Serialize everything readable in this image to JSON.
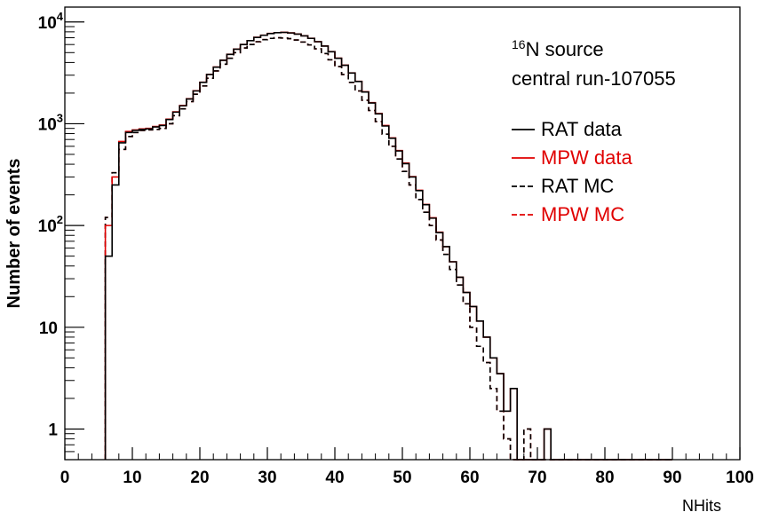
{
  "chart_data": {
    "type": "line",
    "xlabel": "NHits",
    "ylabel": "Number of events",
    "xlim": [
      0,
      100
    ],
    "ylim": [
      0.5,
      14000
    ],
    "yscale": "log",
    "grid": false,
    "x_ticks": [
      "0",
      "10",
      "20",
      "30",
      "40",
      "50",
      "60",
      "70",
      "80",
      "90",
      "100"
    ],
    "y_ticks": [
      {
        "value": 1,
        "label": "1"
      },
      {
        "value": 10,
        "label": "10"
      },
      {
        "value": 100,
        "label": "10",
        "sup": "2"
      },
      {
        "value": 1000,
        "label": "10",
        "sup": "3"
      },
      {
        "value": 10000,
        "label": "10",
        "sup": "4"
      }
    ],
    "annotation": {
      "line1_sup": "16",
      "line1": "N source",
      "line2": "central run-107055"
    },
    "legend_placement": "right",
    "bin_edges_start": 6,
    "bin_width": 1,
    "series": [
      {
        "name": "RAT data",
        "color": "#000000",
        "dash": "solid",
        "values": [
          50,
          250,
          650,
          820,
          860,
          880,
          890,
          930,
          960,
          1100,
          1300,
          1500,
          1750,
          2100,
          2550,
          3050,
          3600,
          4200,
          4800,
          5400,
          6000,
          6550,
          7050,
          7400,
          7700,
          7850,
          7900,
          7800,
          7600,
          7300,
          6900,
          6400,
          5800,
          5100,
          4400,
          3750,
          3150,
          2600,
          2050,
          1600,
          1250,
          950,
          720,
          540,
          405,
          300,
          220,
          160,
          118,
          85,
          62,
          44,
          31,
          22,
          16,
          11.5,
          8,
          5,
          3.5,
          1.5,
          2.5,
          0,
          0.5,
          0,
          0,
          1,
          0,
          0,
          0,
          0,
          0,
          0,
          0,
          0,
          0,
          0,
          0,
          0,
          0,
          0,
          0,
          0,
          0,
          0
        ]
      },
      {
        "name": "MPW data",
        "color": "#e00000",
        "dash": "solid",
        "values": [
          100,
          300,
          670,
          840,
          870,
          890,
          900,
          940,
          970,
          1110,
          1310,
          1510,
          1760,
          2110,
          2560,
          3060,
          3610,
          4210,
          4810,
          5410,
          6010,
          6560,
          7060,
          7410,
          7710,
          7860,
          7910,
          7810,
          7610,
          7310,
          6910,
          6410,
          5810,
          5110,
          4410,
          3760,
          3160,
          2610,
          2060,
          1610,
          1260,
          960,
          725,
          545,
          410,
          302,
          222,
          161,
          119,
          86,
          62,
          44,
          31,
          22,
          16,
          11.5,
          8,
          5,
          3.5,
          1.5,
          2.5,
          0,
          0.5,
          0,
          0,
          1,
          0,
          0,
          0,
          0,
          0,
          0,
          0,
          0,
          0,
          0,
          0,
          0,
          0,
          0,
          0,
          0,
          0,
          0
        ]
      },
      {
        "name": "RAT MC",
        "color": "#000000",
        "dash": "dashed",
        "values": [
          120,
          330,
          560,
          750,
          820,
          860,
          870,
          880,
          900,
          1000,
          1200,
          1400,
          1650,
          1950,
          2350,
          2800,
          3300,
          3850,
          4400,
          5000,
          5550,
          6000,
          6400,
          6700,
          6900,
          7000,
          6950,
          6850,
          6650,
          6350,
          5950,
          5450,
          4900,
          4250,
          3650,
          3050,
          2550,
          2100,
          1700,
          1350,
          1050,
          790,
          600,
          450,
          340,
          250,
          180,
          135,
          100,
          72,
          52,
          37,
          26,
          17,
          10,
          6.5,
          4.5,
          2.5,
          1.5,
          0.8,
          0.5,
          0,
          1,
          0,
          0,
          0,
          0,
          0,
          0,
          0,
          0,
          0,
          0,
          0,
          0,
          0,
          0,
          0,
          0,
          0,
          0,
          0,
          0,
          0
        ]
      },
      {
        "name": "MPW MC",
        "color": "#e00000",
        "dash": "dashed",
        "values": [
          120,
          330,
          560,
          750,
          820,
          860,
          870,
          880,
          900,
          1000,
          1200,
          1400,
          1650,
          1950,
          2350,
          2800,
          3300,
          3850,
          4400,
          5000,
          5550,
          6000,
          6400,
          6700,
          6900,
          7000,
          6950,
          6850,
          6650,
          6350,
          5950,
          5450,
          4900,
          4250,
          3650,
          3050,
          2550,
          2100,
          1700,
          1350,
          1050,
          790,
          600,
          450,
          340,
          250,
          180,
          135,
          100,
          72,
          52,
          37,
          26,
          17,
          10,
          6.5,
          4.5,
          2.5,
          1.5,
          0.8,
          0.5,
          0,
          1,
          0,
          0,
          0,
          0,
          0,
          0,
          0,
          0,
          0,
          0,
          0,
          0,
          0,
          0,
          0,
          0,
          0,
          0,
          0
        ]
      }
    ]
  }
}
